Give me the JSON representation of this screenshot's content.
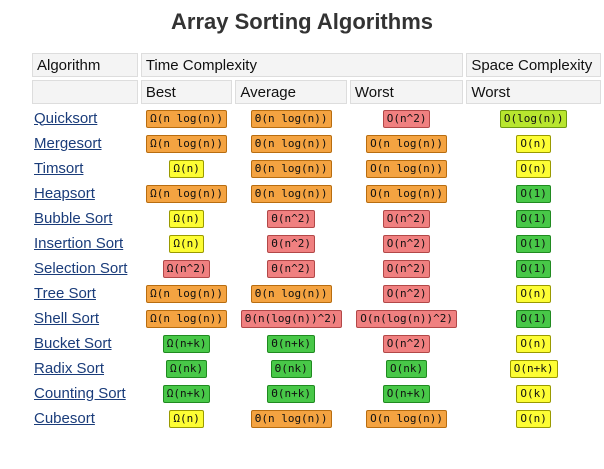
{
  "title": "Array Sorting Algorithms",
  "headers": {
    "algorithm": "Algorithm",
    "time": "Time Complexity",
    "space": "Space Complexity",
    "best": "Best",
    "average": "Average",
    "worst": "Worst",
    "space_worst": "Worst"
  },
  "colors": {
    "orange": "#f4a341",
    "red": "#f08080",
    "yellow": "#fdfd34",
    "green": "#48c848",
    "lime": "#b8e62f"
  },
  "rows": [
    {
      "name": "Quicksort",
      "best": {
        "t": "Ω(n log(n))",
        "c": "orange"
      },
      "avg": {
        "t": "Θ(n log(n))",
        "c": "orange"
      },
      "worst": {
        "t": "O(n^2)",
        "c": "red"
      },
      "space": {
        "t": "O(log(n))",
        "c": "lime"
      }
    },
    {
      "name": "Mergesort",
      "best": {
        "t": "Ω(n log(n))",
        "c": "orange"
      },
      "avg": {
        "t": "Θ(n log(n))",
        "c": "orange"
      },
      "worst": {
        "t": "O(n log(n))",
        "c": "orange"
      },
      "space": {
        "t": "O(n)",
        "c": "yellow"
      }
    },
    {
      "name": "Timsort",
      "best": {
        "t": "Ω(n)",
        "c": "yellow"
      },
      "avg": {
        "t": "Θ(n log(n))",
        "c": "orange"
      },
      "worst": {
        "t": "O(n log(n))",
        "c": "orange"
      },
      "space": {
        "t": "O(n)",
        "c": "yellow"
      }
    },
    {
      "name": "Heapsort",
      "best": {
        "t": "Ω(n log(n))",
        "c": "orange"
      },
      "avg": {
        "t": "Θ(n log(n))",
        "c": "orange"
      },
      "worst": {
        "t": "O(n log(n))",
        "c": "orange"
      },
      "space": {
        "t": "O(1)",
        "c": "green"
      }
    },
    {
      "name": "Bubble Sort",
      "best": {
        "t": "Ω(n)",
        "c": "yellow"
      },
      "avg": {
        "t": "Θ(n^2)",
        "c": "red"
      },
      "worst": {
        "t": "O(n^2)",
        "c": "red"
      },
      "space": {
        "t": "O(1)",
        "c": "green"
      }
    },
    {
      "name": "Insertion Sort",
      "best": {
        "t": "Ω(n)",
        "c": "yellow"
      },
      "avg": {
        "t": "Θ(n^2)",
        "c": "red"
      },
      "worst": {
        "t": "O(n^2)",
        "c": "red"
      },
      "space": {
        "t": "O(1)",
        "c": "green"
      }
    },
    {
      "name": "Selection Sort",
      "best": {
        "t": "Ω(n^2)",
        "c": "red"
      },
      "avg": {
        "t": "Θ(n^2)",
        "c": "red"
      },
      "worst": {
        "t": "O(n^2)",
        "c": "red"
      },
      "space": {
        "t": "O(1)",
        "c": "green"
      }
    },
    {
      "name": "Tree Sort",
      "best": {
        "t": "Ω(n log(n))",
        "c": "orange"
      },
      "avg": {
        "t": "Θ(n log(n))",
        "c": "orange"
      },
      "worst": {
        "t": "O(n^2)",
        "c": "red"
      },
      "space": {
        "t": "O(n)",
        "c": "yellow"
      }
    },
    {
      "name": "Shell Sort",
      "best": {
        "t": "Ω(n log(n))",
        "c": "orange"
      },
      "avg": {
        "t": "Θ(n(log(n))^2)",
        "c": "red"
      },
      "worst": {
        "t": "O(n(log(n))^2)",
        "c": "red"
      },
      "space": {
        "t": "O(1)",
        "c": "green"
      }
    },
    {
      "name": "Bucket Sort",
      "best": {
        "t": "Ω(n+k)",
        "c": "green"
      },
      "avg": {
        "t": "Θ(n+k)",
        "c": "green"
      },
      "worst": {
        "t": "O(n^2)",
        "c": "red"
      },
      "space": {
        "t": "O(n)",
        "c": "yellow"
      }
    },
    {
      "name": "Radix Sort",
      "best": {
        "t": "Ω(nk)",
        "c": "green"
      },
      "avg": {
        "t": "Θ(nk)",
        "c": "green"
      },
      "worst": {
        "t": "O(nk)",
        "c": "green"
      },
      "space": {
        "t": "O(n+k)",
        "c": "yellow"
      }
    },
    {
      "name": "Counting Sort",
      "best": {
        "t": "Ω(n+k)",
        "c": "green"
      },
      "avg": {
        "t": "Θ(n+k)",
        "c": "green"
      },
      "worst": {
        "t": "O(n+k)",
        "c": "green"
      },
      "space": {
        "t": "O(k)",
        "c": "yellow"
      }
    },
    {
      "name": "Cubesort",
      "best": {
        "t": "Ω(n)",
        "c": "yellow"
      },
      "avg": {
        "t": "Θ(n log(n))",
        "c": "orange"
      },
      "worst": {
        "t": "O(n log(n))",
        "c": "orange"
      },
      "space": {
        "t": "O(n)",
        "c": "yellow"
      }
    }
  ]
}
